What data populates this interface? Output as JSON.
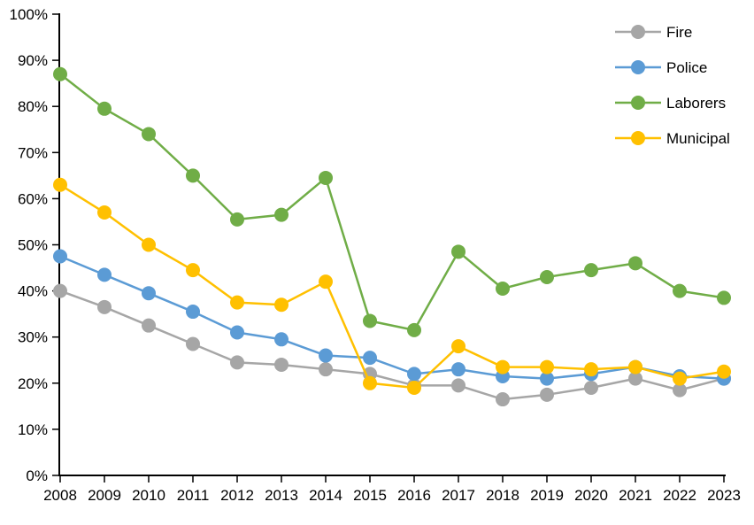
{
  "chart_data": {
    "type": "line",
    "title": "",
    "xlabel": "",
    "ylabel": "",
    "x_categories": [
      "2008",
      "2009",
      "2010",
      "2011",
      "2012",
      "2013",
      "2014",
      "2015",
      "2016",
      "2017",
      "2018",
      "2019",
      "2020",
      "2021",
      "2022",
      "2023"
    ],
    "series": [
      {
        "name": "Fire",
        "color": "#A6A6A6",
        "values": [
          40,
          36.5,
          32.5,
          28.5,
          24.5,
          24,
          23,
          22,
          19.5,
          19.5,
          16.5,
          17.5,
          19,
          21,
          18.5,
          21
        ]
      },
      {
        "name": "Police",
        "color": "#5B9BD5",
        "values": [
          47.5,
          43.5,
          39.5,
          35.5,
          31,
          29.5,
          26,
          25.5,
          22,
          23,
          21.5,
          21,
          22,
          23.5,
          21.5,
          21
        ]
      },
      {
        "name": "Laborers",
        "color": "#70AD47",
        "values": [
          87,
          79.5,
          74,
          65,
          55.5,
          56.5,
          64.5,
          33.5,
          31.5,
          48.5,
          40.5,
          43,
          44.5,
          46,
          40,
          38.5
        ]
      },
      {
        "name": "Municipal",
        "color": "#FFC000",
        "values": [
          63,
          57,
          50,
          44.5,
          37.5,
          37,
          42,
          20,
          19,
          28,
          23.5,
          23.5,
          23,
          23.5,
          21,
          22.5
        ]
      }
    ],
    "ylim": [
      0,
      100
    ],
    "ytick_step": 10,
    "ytick_suffix": "%",
    "grid": false,
    "legend_position": "top-right",
    "legend_items": [
      "Fire",
      "Police",
      "Laborers",
      "Municipal"
    ],
    "axis_color": "#000000",
    "background": "#FFFFFF"
  }
}
